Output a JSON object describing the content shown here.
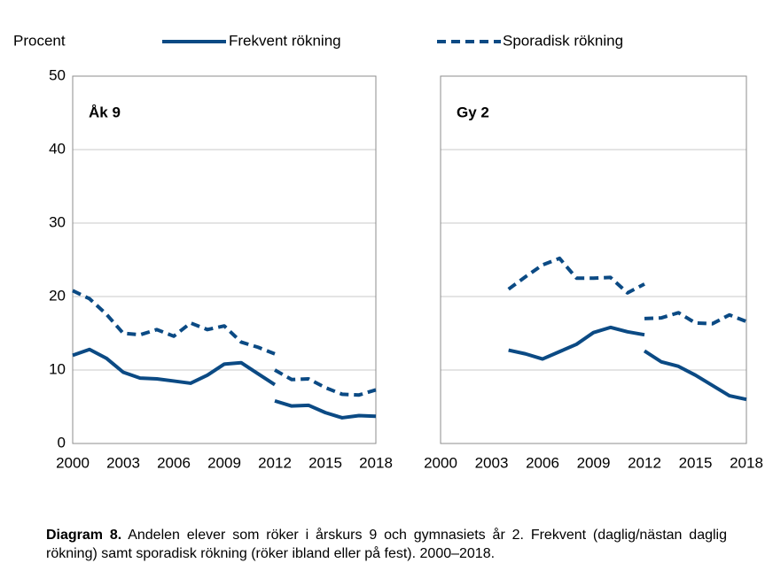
{
  "chart_data": [
    {
      "type": "line",
      "title": "Åk 9",
      "ylabel": "Procent",
      "xlim": [
        2000,
        2018
      ],
      "xticks": [
        2000,
        2003,
        2006,
        2009,
        2012,
        2015,
        2018
      ],
      "ylim": [
        0,
        50
      ],
      "yticks": [
        0,
        10,
        20,
        30,
        40,
        50
      ],
      "grid": true,
      "series": [
        {
          "name": "Frekvent rökning",
          "color": "#0b4a84",
          "dashed": false,
          "x": [
            2000,
            2001,
            2002,
            2003,
            2004,
            2005,
            2006,
            2007,
            2008,
            2009,
            2010,
            2011,
            2012
          ],
          "values": [
            12,
            12.8,
            11.6,
            9.7,
            8.9,
            8.8,
            8.5,
            8.2,
            9.3,
            10.8,
            11,
            9.5,
            8
          ]
        },
        {
          "name": "Sporadisk rökning",
          "color": "#0b4a84",
          "dashed": true,
          "x": [
            2000,
            2001,
            2002,
            2003,
            2004,
            2005,
            2006,
            2007,
            2008,
            2009,
            2010,
            2011,
            2012
          ],
          "values": [
            20.8,
            19.7,
            17.6,
            15,
            14.8,
            15.5,
            14.6,
            16.4,
            15.5,
            16,
            13.8,
            13.1,
            12.2
          ]
        },
        {
          "name": "Frekvent rökning",
          "color": "#0b4a84",
          "dashed": false,
          "x": [
            2012,
            2013,
            2014,
            2015,
            2016,
            2017,
            2018
          ],
          "values": [
            5.8,
            5.1,
            5.2,
            4.2,
            3.5,
            3.8,
            3.7
          ]
        },
        {
          "name": "Sporadisk rökning",
          "color": "#0b4a84",
          "dashed": true,
          "x": [
            2012,
            2013,
            2014,
            2015,
            2016,
            2017,
            2018
          ],
          "values": [
            10,
            8.7,
            8.8,
            7.6,
            6.7,
            6.6,
            7.3
          ]
        }
      ]
    },
    {
      "type": "line",
      "title": "Gy 2",
      "xlim": [
        2000,
        2018
      ],
      "xticks": [
        2000,
        2003,
        2006,
        2009,
        2012,
        2015,
        2018
      ],
      "ylim": [
        0,
        50
      ],
      "grid": true,
      "series": [
        {
          "name": "Frekvent rökning",
          "color": "#0b4a84",
          "dashed": false,
          "x": [
            2004,
            2005,
            2006,
            2007,
            2008,
            2009,
            2010,
            2011,
            2012
          ],
          "values": [
            12.7,
            12.2,
            11.5,
            12.5,
            13.5,
            15.1,
            15.8,
            15.2,
            14.8
          ]
        },
        {
          "name": "Sporadisk rökning",
          "color": "#0b4a84",
          "dashed": true,
          "x": [
            2004,
            2005,
            2006,
            2007,
            2008,
            2009,
            2010,
            2011,
            2012
          ],
          "values": [
            21,
            22.7,
            24.3,
            25.2,
            22.5,
            22.5,
            22.6,
            20.5,
            21.7
          ]
        },
        {
          "name": "Frekvent rökning",
          "color": "#0b4a84",
          "dashed": false,
          "x": [
            2012,
            2013,
            2014,
            2015,
            2016,
            2017,
            2018
          ],
          "values": [
            12.6,
            11.1,
            10.5,
            9.3,
            7.9,
            6.5,
            6
          ]
        },
        {
          "name": "Sporadisk rökning",
          "color": "#0b4a84",
          "dashed": true,
          "x": [
            2012,
            2013,
            2014,
            2015,
            2016,
            2017,
            2018
          ],
          "values": [
            17,
            17.1,
            17.8,
            16.4,
            16.3,
            17.5,
            16.6
          ]
        }
      ]
    }
  ],
  "caption": {
    "label": "Diagram 8.",
    "text": " Andelen elever som röker i årskurs 9 och gymnasiets år 2. Frekvent (daglig/nästan daglig rökning) samt sporadisk rökning (röker ibland eller på fest). 2000–2018."
  }
}
